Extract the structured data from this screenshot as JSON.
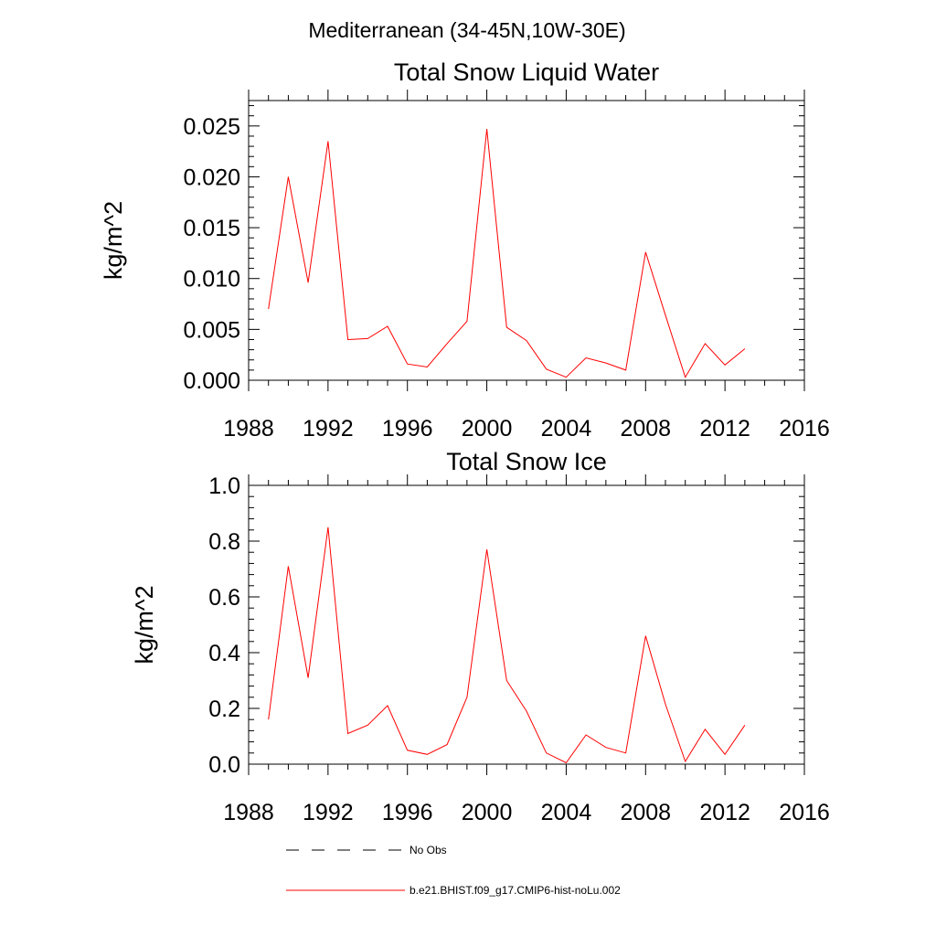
{
  "figure": {
    "main_title": "Mediterranean (34-45N,10W-30E)"
  },
  "legend": {
    "items": [
      {
        "label": "No Obs",
        "style": "dashed",
        "color": "#000000"
      },
      {
        "label": "b.e21.BHIST.f09_g17.CMIP6-hist-noLu.002",
        "style": "solid",
        "color": "#ff0000"
      }
    ]
  },
  "chart_data": [
    {
      "type": "line",
      "title": "Total Snow Liquid Water",
      "xlabel": "",
      "ylabel": "kg/m^2",
      "xlim": [
        1988,
        2016
      ],
      "ylim": [
        0,
        0.0275
      ],
      "xticks": [
        1988,
        1992,
        1996,
        2000,
        2004,
        2008,
        2012,
        2016
      ],
      "xtick_labels": [
        "1988",
        "1992",
        "1996",
        "2000",
        "2004",
        "2008",
        "2012",
        "2016"
      ],
      "yticks": [
        0,
        0.005,
        0.01,
        0.015,
        0.02,
        0.025
      ],
      "ytick_labels": [
        "0.000",
        "0.005",
        "0.010",
        "0.015",
        "0.020",
        "0.025"
      ],
      "grid": false,
      "series": [
        {
          "name": "b.e21.BHIST.f09_g17.CMIP6-hist-noLu.002",
          "color": "#ff0000",
          "x": [
            1989,
            1990,
            1991,
            1992,
            1993,
            1994,
            1995,
            1996,
            1997,
            1998,
            1999,
            2000,
            2001,
            2002,
            2003,
            2004,
            2005,
            2006,
            2007,
            2008,
            2009,
            2010,
            2011,
            2012,
            2013
          ],
          "y": [
            0.007,
            0.02,
            0.0096,
            0.0235,
            0.004,
            0.0041,
            0.0053,
            0.0016,
            0.0013,
            0.0036,
            0.0058,
            0.0247,
            0.0052,
            0.0039,
            0.0011,
            0.0003,
            0.0022,
            0.0017,
            0.001,
            0.0126,
            0.0064,
            0.0003,
            0.0036,
            0.0015,
            0.0031
          ]
        }
      ]
    },
    {
      "type": "line",
      "title": "Total Snow Ice",
      "xlabel": "",
      "ylabel": "kg/m^2",
      "xlim": [
        1988,
        2016
      ],
      "ylim": [
        0,
        1.0
      ],
      "xticks": [
        1988,
        1992,
        1996,
        2000,
        2004,
        2008,
        2012,
        2016
      ],
      "xtick_labels": [
        "1988",
        "1992",
        "1996",
        "2000",
        "2004",
        "2008",
        "2012",
        "2016"
      ],
      "yticks": [
        0,
        0.2,
        0.4,
        0.6,
        0.8,
        1.0
      ],
      "ytick_labels": [
        "0.0",
        "0.2",
        "0.4",
        "0.6",
        "0.8",
        "1.0"
      ],
      "grid": false,
      "series": [
        {
          "name": "b.e21.BHIST.f09_g17.CMIP6-hist-noLu.002",
          "color": "#ff0000",
          "x": [
            1989,
            1990,
            1991,
            1992,
            1993,
            1994,
            1995,
            1996,
            1997,
            1998,
            1999,
            2000,
            2001,
            2002,
            2003,
            2004,
            2005,
            2006,
            2007,
            2008,
            2009,
            2010,
            2011,
            2012,
            2013
          ],
          "y": [
            0.16,
            0.71,
            0.31,
            0.85,
            0.11,
            0.14,
            0.21,
            0.05,
            0.035,
            0.07,
            0.24,
            0.77,
            0.3,
            0.19,
            0.04,
            0.005,
            0.105,
            0.06,
            0.04,
            0.46,
            0.215,
            0.01,
            0.125,
            0.035,
            0.14
          ]
        }
      ]
    }
  ]
}
